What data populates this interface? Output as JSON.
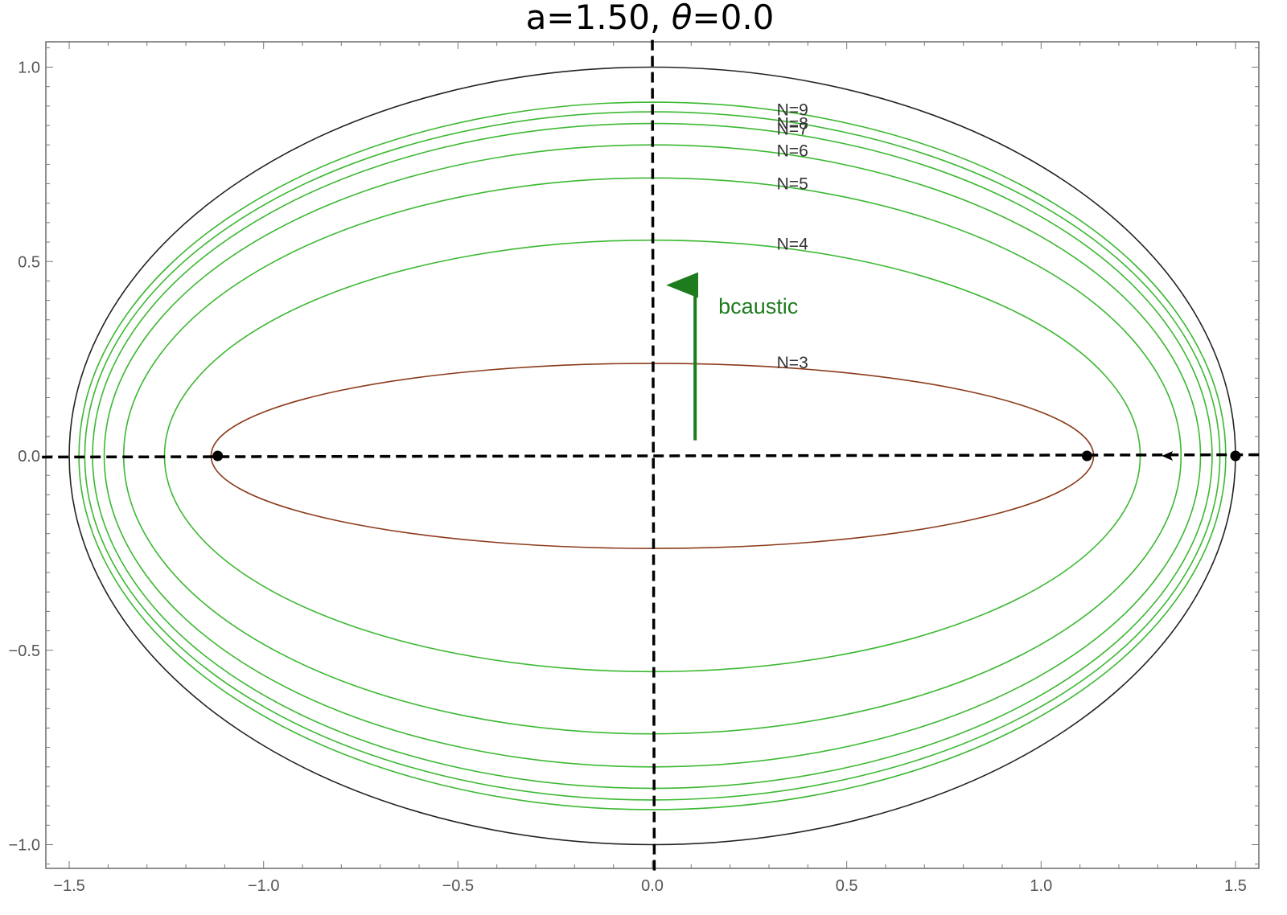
{
  "chart_data": {
    "type": "line",
    "title": {
      "prefix": "a=1.50, ",
      "symbol": "θ",
      "suffix": "=0.0"
    },
    "xlim": [
      -1.5,
      1.5
    ],
    "ylim": [
      -1.0,
      1.0
    ],
    "x_ticks": [
      {
        "value": -1.5,
        "label": "−1.5"
      },
      {
        "value": -1.0,
        "label": "−1.0"
      },
      {
        "value": -0.5,
        "label": "−0.5"
      },
      {
        "value": 0.0,
        "label": "0.0"
      },
      {
        "value": 0.5,
        "label": "0.5"
      },
      {
        "value": 1.0,
        "label": "1.0"
      },
      {
        "value": 1.5,
        "label": "1.5"
      }
    ],
    "y_ticks": [
      {
        "value": -1.0,
        "label": "−1.0"
      },
      {
        "value": -0.5,
        "label": "−0.5"
      },
      {
        "value": 0.0,
        "label": "0.0"
      },
      {
        "value": 0.5,
        "label": "0.5"
      },
      {
        "value": 1.0,
        "label": "1.0"
      }
    ],
    "boundary": {
      "a": 1.5,
      "b": 1.0,
      "color": "#222222"
    },
    "caustics": [
      {
        "label": "N=3",
        "a": 1.135,
        "b": 0.238,
        "color": "#8b3a1a",
        "label_y": 0.23
      },
      {
        "label": "N=4",
        "a": 1.255,
        "b": 0.555,
        "color": "#3cb832",
        "label_y": 0.535
      },
      {
        "label": "N=5",
        "a": 1.36,
        "b": 0.715,
        "color": "#3cb832",
        "label_y": 0.69
      },
      {
        "label": "N=6",
        "a": 1.41,
        "b": 0.8,
        "color": "#3cb832",
        "label_y": 0.775
      },
      {
        "label": "N=7",
        "a": 1.44,
        "b": 0.855,
        "color": "#3cb832",
        "label_y": 0.83
      },
      {
        "label": "N=8",
        "a": 1.46,
        "b": 0.885,
        "color": "#3cb832",
        "label_y": 0.845
      },
      {
        "label": "N=9",
        "a": 1.475,
        "b": 0.91,
        "color": "#3cb832",
        "label_y": 0.88
      }
    ],
    "curve_label_x": 0.32,
    "foci": [
      {
        "x": -1.118,
        "y": 0.0
      },
      {
        "x": 1.118,
        "y": 0.0
      },
      {
        "x": 1.5,
        "y": 0.0
      }
    ],
    "dashed_axes": {
      "h_from": [
        -1.57,
        -0.003
      ],
      "h_to": [
        1.57,
        0.003
      ],
      "v_from": [
        0.0,
        1.07
      ],
      "v_to": [
        0.005,
        -1.07
      ]
    },
    "annotation": {
      "text": "bcaustic",
      "color": "#1e7b1e",
      "arrow_x": 0.11,
      "arrow_from_y": 0.04,
      "arrow_to_y": 0.46,
      "text_x": 0.17,
      "text_y": 0.385
    },
    "small_arrow": {
      "from_x": 1.38,
      "to_x": 1.31,
      "y": 0.0
    }
  }
}
